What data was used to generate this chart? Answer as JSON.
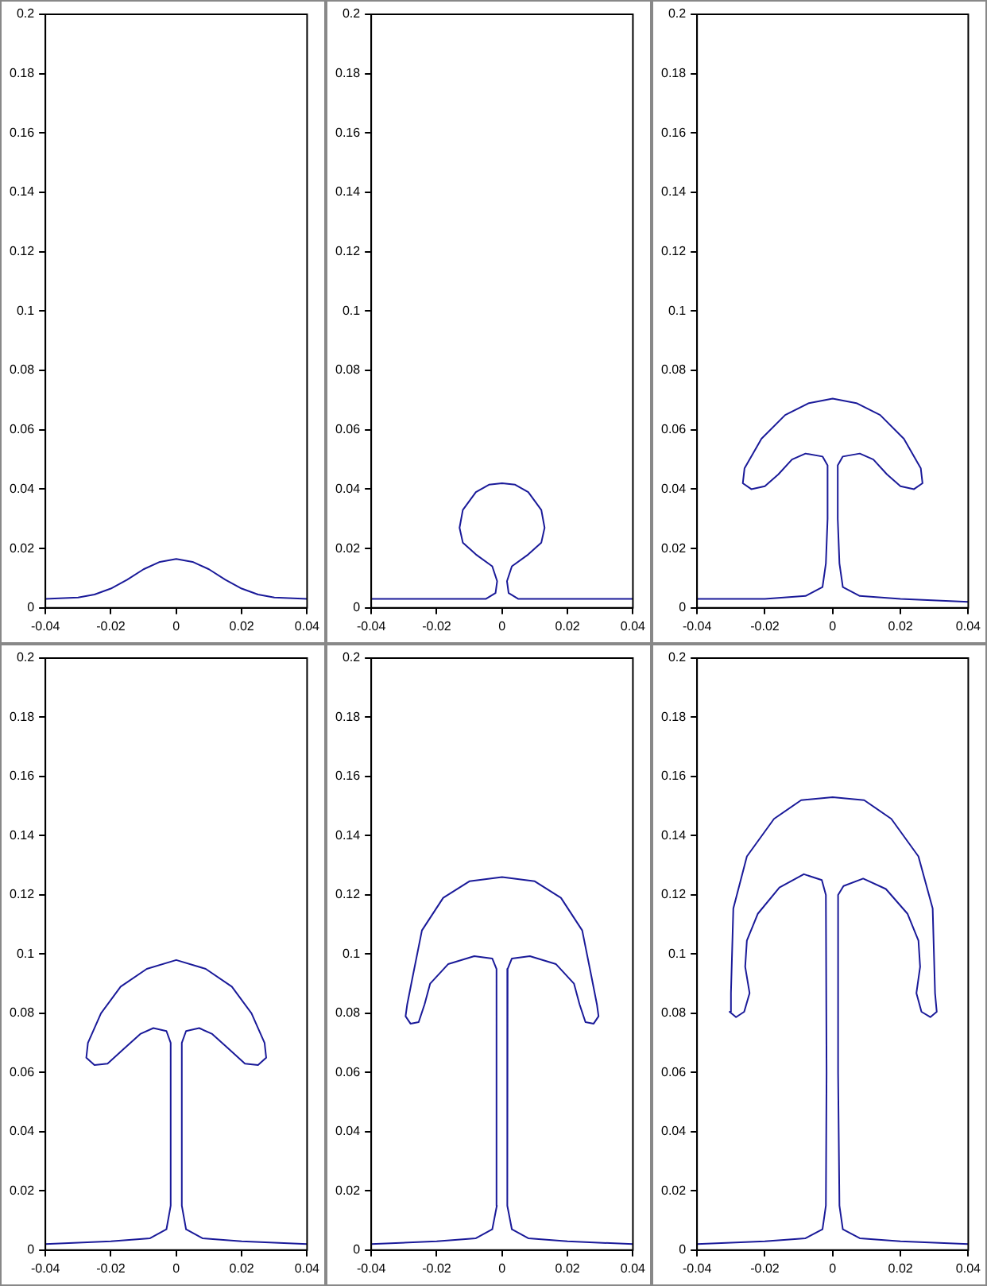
{
  "chart_data": [
    {
      "type": "line",
      "color": "#1a1a99",
      "marker": "none",
      "xlim": [
        -0.04,
        0.04
      ],
      "ylim": [
        0,
        0.2
      ],
      "xticks": [
        -0.04,
        -0.02,
        0,
        0.02,
        0.04
      ],
      "yticks": [
        0,
        0.02,
        0.04,
        0.06,
        0.08,
        0.1,
        0.12,
        0.14,
        0.16,
        0.18,
        0.2
      ],
      "x": [
        -0.04,
        -0.03,
        -0.025,
        -0.02,
        -0.015,
        -0.01,
        -0.005,
        0,
        0.005,
        0.01,
        0.015,
        0.02,
        0.025,
        0.03,
        0.04
      ],
      "values": [
        0.003,
        0.0035,
        0.0045,
        0.0065,
        0.0095,
        0.013,
        0.0155,
        0.0165,
        0.0155,
        0.013,
        0.0095,
        0.0065,
        0.0045,
        0.0035,
        0.003
      ]
    },
    {
      "type": "line",
      "color": "#1a1a99",
      "marker": "none",
      "xlim": [
        -0.04,
        0.04
      ],
      "ylim": [
        0,
        0.2
      ],
      "xticks": [
        -0.04,
        -0.02,
        0,
        0.02,
        0.04
      ],
      "yticks": [
        0,
        0.02,
        0.04,
        0.06,
        0.08,
        0.1,
        0.12,
        0.14,
        0.16,
        0.18,
        0.2
      ],
      "x": [
        -0.04,
        -0.005,
        -0.002,
        -0.0015,
        -0.003,
        -0.008,
        -0.012,
        -0.013,
        -0.012,
        -0.008,
        -0.004,
        0,
        0.004,
        0.008,
        0.012,
        0.013,
        0.012,
        0.008,
        0.003,
        0.0015,
        0.002,
        0.005,
        0.04
      ],
      "values": [
        0.003,
        0.003,
        0.005,
        0.009,
        0.014,
        0.018,
        0.022,
        0.027,
        0.033,
        0.039,
        0.0415,
        0.042,
        0.0415,
        0.039,
        0.033,
        0.027,
        0.022,
        0.018,
        0.014,
        0.009,
        0.005,
        0.003,
        0.003
      ]
    },
    {
      "type": "line",
      "color": "#1a1a99",
      "marker": "none",
      "xlim": [
        -0.04,
        0.04
      ],
      "ylim": [
        0,
        0.2
      ],
      "xticks": [
        -0.04,
        -0.02,
        0,
        0.02,
        0.04
      ],
      "yticks": [
        0,
        0.02,
        0.04,
        0.06,
        0.08,
        0.1,
        0.12,
        0.14,
        0.16,
        0.18,
        0.2
      ],
      "x": [
        -0.04,
        -0.02,
        -0.008,
        -0.003,
        -0.002,
        -0.0015,
        -0.0015,
        -0.003,
        -0.008,
        -0.012,
        -0.016,
        -0.02,
        -0.024,
        -0.0265,
        -0.026,
        -0.021,
        -0.014,
        -0.007,
        0,
        0.007,
        0.014,
        0.021,
        0.026,
        0.0265,
        0.024,
        0.02,
        0.016,
        0.012,
        0.008,
        0.003,
        0.0015,
        0.0015,
        0.002,
        0.003,
        0.008,
        0.02,
        0.04
      ],
      "values": [
        0.003,
        0.003,
        0.004,
        0.007,
        0.015,
        0.03,
        0.048,
        0.051,
        0.052,
        0.05,
        0.045,
        0.041,
        0.04,
        0.042,
        0.047,
        0.057,
        0.065,
        0.069,
        0.0705,
        0.069,
        0.065,
        0.057,
        0.047,
        0.042,
        0.04,
        0.041,
        0.045,
        0.05,
        0.052,
        0.051,
        0.048,
        0.03,
        0.015,
        0.007,
        0.004,
        0.003,
        0.002
      ]
    },
    {
      "type": "line",
      "color": "#1a1a99",
      "marker": "none",
      "xlim": [
        -0.04,
        0.04
      ],
      "ylim": [
        0,
        0.2
      ],
      "xticks": [
        -0.04,
        -0.02,
        0,
        0.02,
        0.04
      ],
      "yticks": [
        0,
        0.02,
        0.04,
        0.06,
        0.08,
        0.1,
        0.12,
        0.14,
        0.16,
        0.18,
        0.2
      ],
      "x": [
        -0.04,
        -0.02,
        -0.008,
        -0.003,
        -0.0017,
        -0.0017,
        -0.003,
        -0.007,
        -0.011,
        -0.016,
        -0.021,
        -0.025,
        -0.0275,
        -0.027,
        -0.023,
        -0.017,
        -0.009,
        0,
        0.009,
        0.017,
        0.023,
        0.027,
        0.0275,
        0.025,
        0.021,
        0.016,
        0.011,
        0.007,
        0.003,
        0.0017,
        0.0017,
        0.003,
        0.008,
        0.02,
        0.04
      ],
      "values": [
        0.002,
        0.003,
        0.004,
        0.007,
        0.015,
        0.07,
        0.074,
        0.075,
        0.073,
        0.068,
        0.063,
        0.0625,
        0.065,
        0.07,
        0.08,
        0.089,
        0.095,
        0.098,
        0.095,
        0.089,
        0.08,
        0.07,
        0.065,
        0.0625,
        0.063,
        0.068,
        0.073,
        0.075,
        0.074,
        0.07,
        0.015,
        0.007,
        0.004,
        0.003,
        0.002
      ]
    },
    {
      "type": "line",
      "color": "#1a1a99",
      "marker": "none",
      "xlim": [
        -0.04,
        0.04
      ],
      "ylim": [
        0,
        0.2
      ],
      "xticks": [
        -0.04,
        -0.02,
        0,
        0.02,
        0.04
      ],
      "yticks": [
        0,
        0.02,
        0.04,
        0.06,
        0.08,
        0.1,
        0.12,
        0.14,
        0.16,
        0.18,
        0.2
      ],
      "x": [
        -0.04,
        -0.02,
        -0.008,
        -0.003,
        -0.0016,
        -0.0017,
        -0.003,
        -0.0085,
        -0.0165,
        -0.022,
        -0.0237,
        -0.0255,
        -0.028,
        -0.0295,
        -0.029,
        -0.0274,
        -0.0245,
        -0.018,
        -0.01,
        0,
        0.01,
        0.018,
        0.0245,
        0.0274,
        0.029,
        0.0295,
        0.028,
        0.0255,
        0.0237,
        0.022,
        0.0165,
        0.0085,
        0.003,
        0.0017,
        0.0016,
        0.003,
        0.008,
        0.02,
        0.04
      ],
      "values": [
        0.002,
        0.003,
        0.004,
        0.007,
        0.015,
        0.095,
        0.0985,
        0.0993,
        0.0966,
        0.09,
        0.083,
        0.077,
        0.0765,
        0.079,
        0.083,
        0.092,
        0.108,
        0.119,
        0.1246,
        0.126,
        0.1246,
        0.119,
        0.108,
        0.092,
        0.083,
        0.079,
        0.0765,
        0.077,
        0.083,
        0.09,
        0.0966,
        0.0993,
        0.0985,
        0.095,
        0.015,
        0.007,
        0.004,
        0.003,
        0.002
      ]
    },
    {
      "type": "line",
      "color": "#1a1a99",
      "marker": "none",
      "xlim": [
        -0.04,
        0.04
      ],
      "ylim": [
        0,
        0.2
      ],
      "xticks": [
        -0.04,
        -0.02,
        0,
        0.02,
        0.04
      ],
      "yticks": [
        0,
        0.02,
        0.04,
        0.06,
        0.08,
        0.1,
        0.12,
        0.14,
        0.16,
        0.18,
        0.2
      ],
      "x": [
        -0.04,
        -0.02,
        -0.008,
        -0.003,
        -0.002,
        -0.0018,
        -0.002,
        -0.0032,
        -0.0085,
        -0.0157,
        -0.0221,
        -0.0253,
        -0.0258,
        -0.0245,
        -0.0261,
        -0.0285,
        -0.0304,
        -0.03,
        -0.0293,
        -0.0253,
        -0.0173,
        -0.0093,
        0,
        0.0093,
        0.0173,
        0.0253,
        0.0295,
        0.0302,
        0.0307,
        0.0288,
        0.0262,
        0.0247,
        0.0258,
        0.0253,
        0.0221,
        0.0157,
        0.009,
        0.0032,
        0.0016,
        0.0016,
        0.002,
        0.003,
        0.008,
        0.02,
        0.04
      ],
      "values": [
        0.002,
        0.003,
        0.004,
        0.007,
        0.015,
        0.06,
        0.12,
        0.125,
        0.127,
        0.1225,
        0.1136,
        0.1046,
        0.0957,
        0.0868,
        0.0805,
        0.0787,
        0.0805,
        0.0868,
        0.1154,
        0.133,
        0.1457,
        0.152,
        0.153,
        0.152,
        0.1457,
        0.133,
        0.1154,
        0.0868,
        0.0805,
        0.0787,
        0.0805,
        0.0868,
        0.0957,
        0.1046,
        0.1136,
        0.122,
        0.1255,
        0.123,
        0.12,
        0.06,
        0.015,
        0.007,
        0.004,
        0.003,
        0.002
      ]
    }
  ]
}
